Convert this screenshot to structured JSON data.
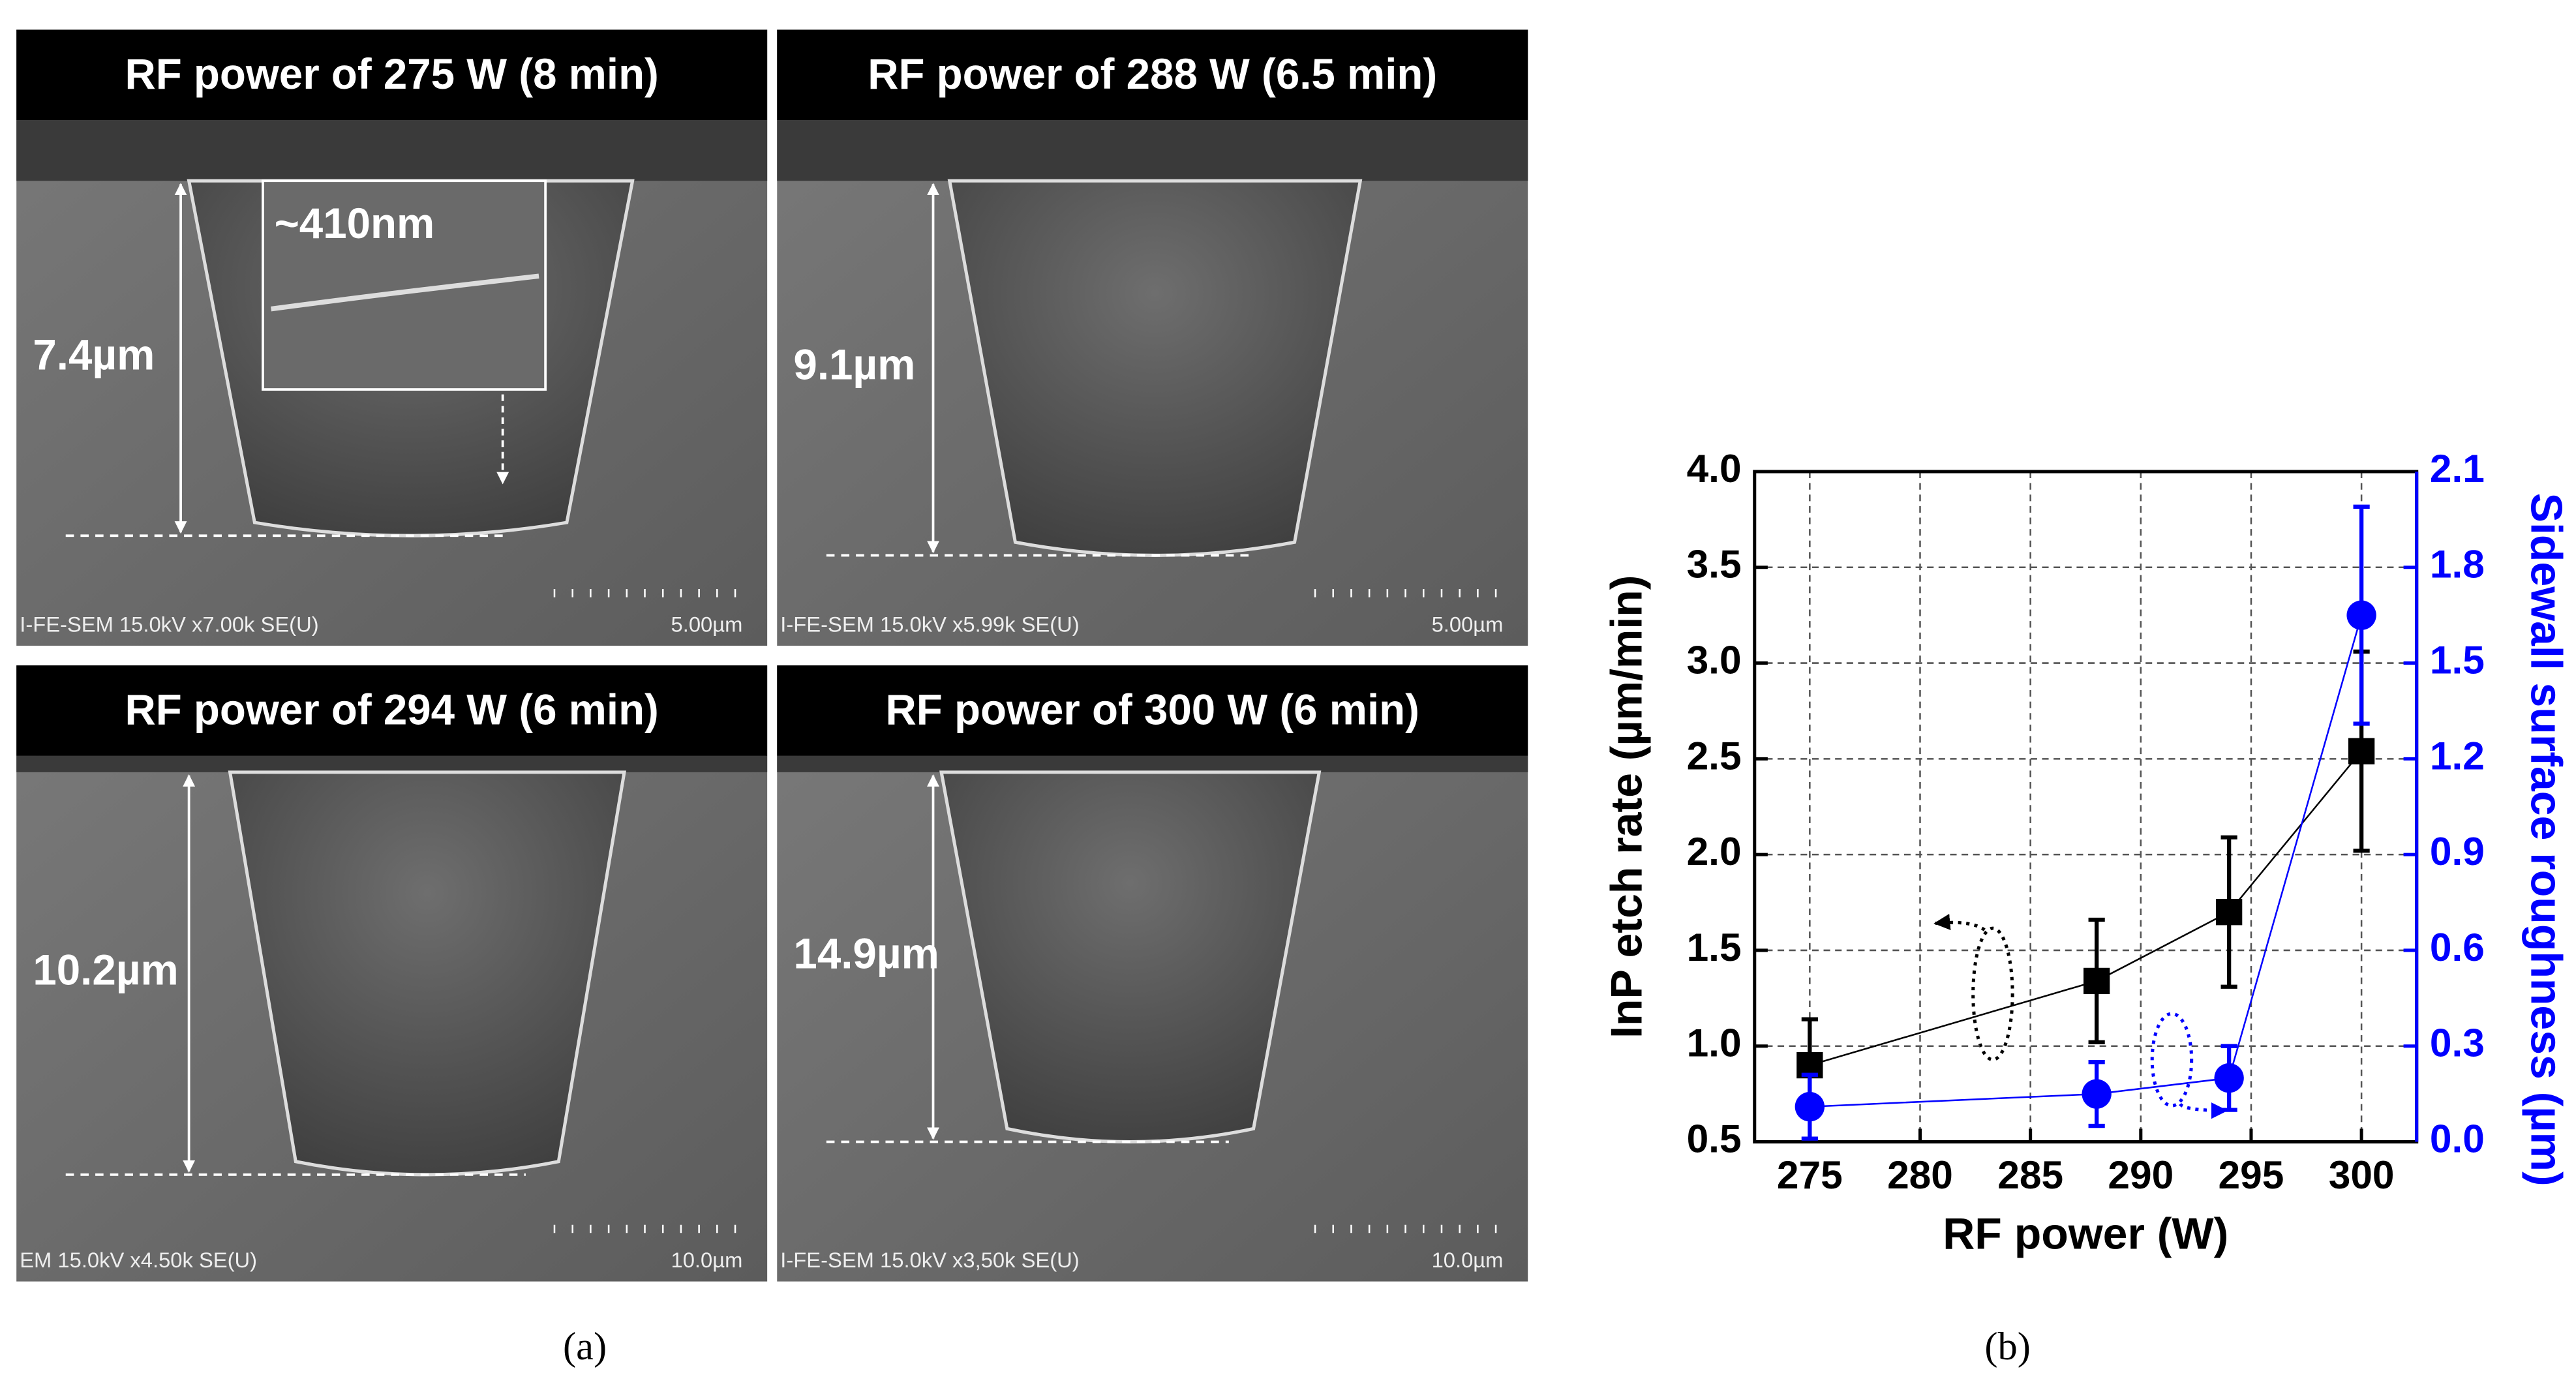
{
  "figure": {
    "panels": [
      {
        "title": "RF power of 275 W (8 min)",
        "depth": "7.4µm",
        "inset": "~410nm",
        "info": "I-FE-SEM 15.0kV x7.00k SE(U)",
        "scale": "5.00µm"
      },
      {
        "title": "RF power of 288 W (6.5 min)",
        "depth": "9.1µm",
        "info": "I-FE-SEM 15.0kV x5.99k SE(U)",
        "scale": "5.00µm"
      },
      {
        "title": "RF power of 294 W (6 min)",
        "depth": "10.2µm",
        "info": "EM 15.0kV x4.50k SE(U)",
        "scale": "10.0µm"
      },
      {
        "title": "RF power of 300 W (6 min)",
        "depth": "14.9µm",
        "info": "I-FE-SEM 15.0kV x3,50k SE(U)",
        "scale": "10.0µm"
      }
    ],
    "caption_a": "(a)",
    "caption_b": "(b)"
  },
  "chart_data": {
    "type": "line",
    "x_label": "RF power (W)",
    "y_label": "InP etch rate (µm/min)",
    "y2_label": "Sidewall surface roughness (µm)",
    "x": [
      275,
      288,
      294,
      300
    ],
    "series": [
      {
        "name": "InP etch rate",
        "color": "#000000",
        "marker": "square",
        "values": [
          0.9,
          1.34,
          1.7,
          2.54
        ],
        "errors": [
          0.24,
          0.32,
          0.39,
          0.52
        ]
      },
      {
        "name": "Sidewall surface roughness",
        "color": "#0000ff",
        "marker": "circle",
        "axis": "y2",
        "values": [
          0.11,
          0.15,
          0.2,
          1.65
        ],
        "errors": [
          0.1,
          0.1,
          0.1,
          0.34
        ]
      }
    ],
    "xlim": [
      272.5,
      302.5
    ],
    "xticks": [
      275,
      280,
      285,
      290,
      295,
      300
    ],
    "ylim": [
      0.5,
      4.0
    ],
    "yticks": [
      0.5,
      {
        "value": 1.0,
        "label": "1.0"
      },
      1.5,
      {
        "value": 2.0,
        "label": "2.0"
      },
      2.5,
      {
        "value": 3.0,
        "label": "3.0"
      },
      3.5,
      {
        "value": 4.0,
        "label": "4.0"
      }
    ],
    "y2lim": [
      0,
      2.1
    ],
    "y2ticks": [
      {
        "value": 0,
        "label": "0.0"
      },
      0.3,
      0.6,
      0.9,
      1.2,
      1.5,
      1.8,
      2.1
    ],
    "y2_color": "#0000ff",
    "grid": true
  }
}
